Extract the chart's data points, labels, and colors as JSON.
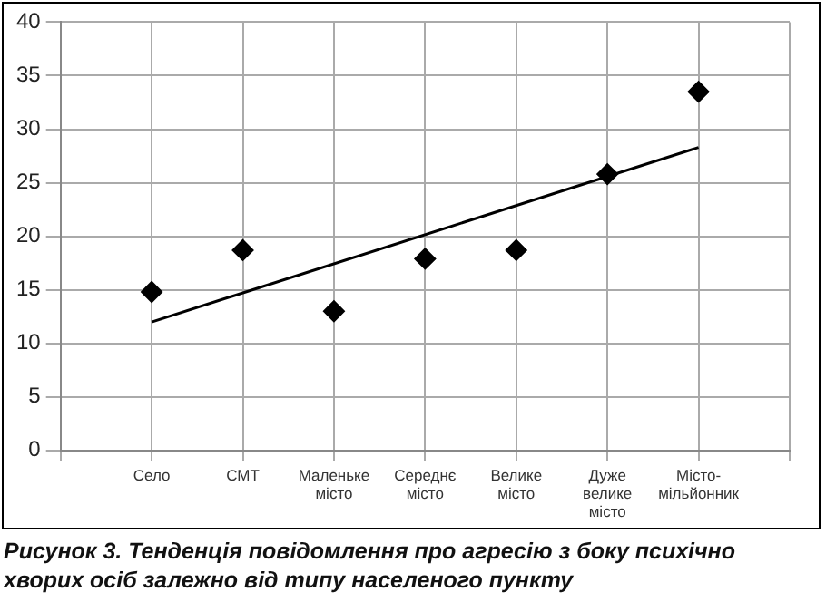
{
  "chart_data": {
    "type": "scatter",
    "title": "Рисунок 3. Тенденція повідомлення про агресію з боку психічно хворих осіб залежно від типу населеного пункту",
    "categories": [
      "Село",
      "СМТ",
      "Маленьке місто",
      "Середнє місто",
      "Велике місто",
      "Дуже велике місто",
      "Місто-мільйонник"
    ],
    "ylim": [
      0,
      40
    ],
    "yticks": [
      0,
      5,
      10,
      15,
      20,
      25,
      30,
      35,
      40
    ],
    "grid": true,
    "legend": false,
    "marker": "diamond",
    "series": [
      {
        "color": "#000000",
        "values": [
          14.8,
          18.7,
          13.0,
          17.9,
          18.7,
          25.8,
          33.5
        ]
      },
      {
        "type": "line",
        "color": "#000000",
        "x": [
          "Село",
          "Місто-мільйонник"
        ],
        "values": [
          12.0,
          28.3
        ],
        "marker": "none"
      }
    ]
  }
}
